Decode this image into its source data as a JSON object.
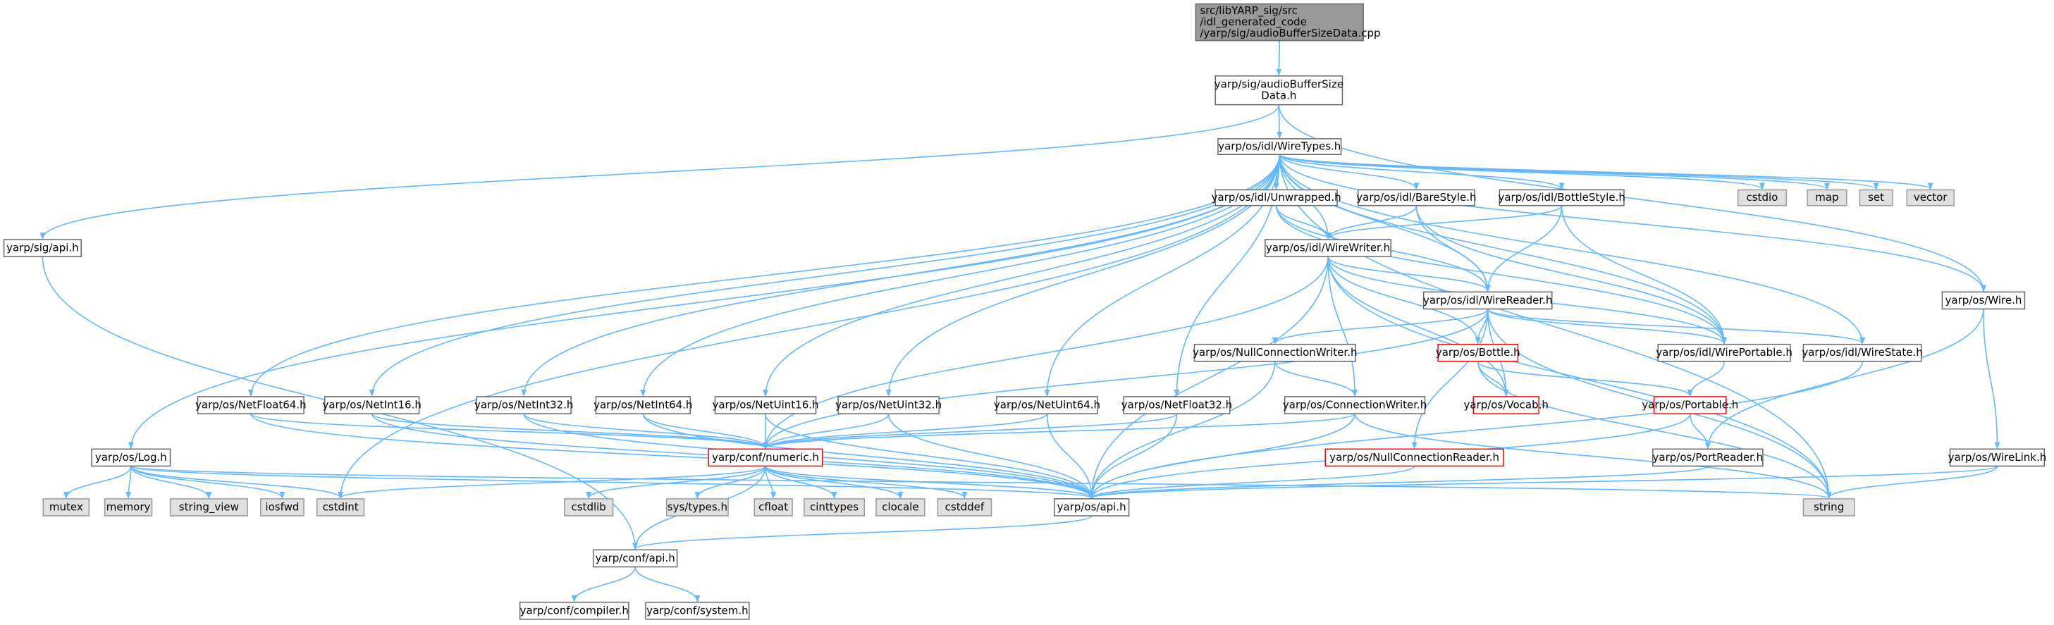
{
  "nodes": [
    {
      "lines": [
        "src/libYARP_sig/src",
        "/idl_generated_code",
        "/yarp/sig/audioBufferSizeData.cpp"
      ]
    },
    {
      "lines": [
        "yarp/sig/audioBufferSize",
        "Data.h"
      ]
    },
    {
      "lines": [
        "yarp/os/idl/WireTypes.h"
      ]
    },
    {
      "lines": [
        "yarp/sig/api.h"
      ]
    },
    {
      "lines": [
        "yarp/os/Log.h"
      ]
    },
    {
      "lines": [
        "yarp/os/NetFloat64.h"
      ]
    },
    {
      "lines": [
        "yarp/os/NetInt16.h"
      ]
    },
    {
      "lines": [
        "yarp/os/NetInt32.h"
      ]
    },
    {
      "lines": [
        "yarp/os/NetInt64.h"
      ]
    },
    {
      "lines": [
        "yarp/os/NetUint16.h"
      ]
    },
    {
      "lines": [
        "yarp/os/NetUint32.h"
      ]
    },
    {
      "lines": [
        "yarp/os/NetUint64.h"
      ]
    },
    {
      "lines": [
        "yarp/os/NetFloat32.h"
      ]
    },
    {
      "lines": [
        "yarp/os/idl/Unwrapped.h"
      ]
    },
    {
      "lines": [
        "yarp/os/idl/BareStyle.h"
      ]
    },
    {
      "lines": [
        "yarp/os/idl/BottleStyle.h"
      ]
    },
    {
      "lines": [
        "cstdio"
      ]
    },
    {
      "lines": [
        "map"
      ]
    },
    {
      "lines": [
        "set"
      ]
    },
    {
      "lines": [
        "vector"
      ]
    },
    {
      "lines": [
        "yarp/os/idl/WireWriter.h"
      ]
    },
    {
      "lines": [
        "yarp/os/Wire.h"
      ]
    },
    {
      "lines": [
        "yarp/os/idl/WireReader.h"
      ]
    },
    {
      "lines": [
        "yarp/os/NullConnectionWriter.h"
      ]
    },
    {
      "lines": [
        "yarp/os/Bottle.h"
      ]
    },
    {
      "lines": [
        "yarp/os/idl/WirePortable.h"
      ]
    },
    {
      "lines": [
        "yarp/os/idl/WireState.h"
      ]
    },
    {
      "lines": [
        "yarp/os/ConnectionWriter.h"
      ]
    },
    {
      "lines": [
        "yarp/os/Vocab.h"
      ]
    },
    {
      "lines": [
        "yarp/os/Portable.h"
      ]
    },
    {
      "lines": [
        "yarp/conf/numeric.h"
      ]
    },
    {
      "lines": [
        "yarp/os/NullConnectionReader.h"
      ]
    },
    {
      "lines": [
        "yarp/os/PortReader.h"
      ]
    },
    {
      "lines": [
        "yarp/os/WireLink.h"
      ]
    },
    {
      "lines": [
        "mutex"
      ]
    },
    {
      "lines": [
        "memory"
      ]
    },
    {
      "lines": [
        "string_view"
      ]
    },
    {
      "lines": [
        "iosfwd"
      ]
    },
    {
      "lines": [
        "cstdint"
      ]
    },
    {
      "lines": [
        "cstdlib"
      ]
    },
    {
      "lines": [
        "sys/types.h"
      ]
    },
    {
      "lines": [
        "cfloat"
      ]
    },
    {
      "lines": [
        "cinttypes"
      ]
    },
    {
      "lines": [
        "clocale"
      ]
    },
    {
      "lines": [
        "cstddef"
      ]
    },
    {
      "lines": [
        "yarp/os/api.h"
      ]
    },
    {
      "lines": [
        "string"
      ]
    },
    {
      "lines": [
        "yarp/conf/api.h"
      ]
    },
    {
      "lines": [
        "yarp/conf/compiler.h"
      ]
    },
    {
      "lines": [
        "yarp/conf/system.h"
      ]
    }
  ]
}
